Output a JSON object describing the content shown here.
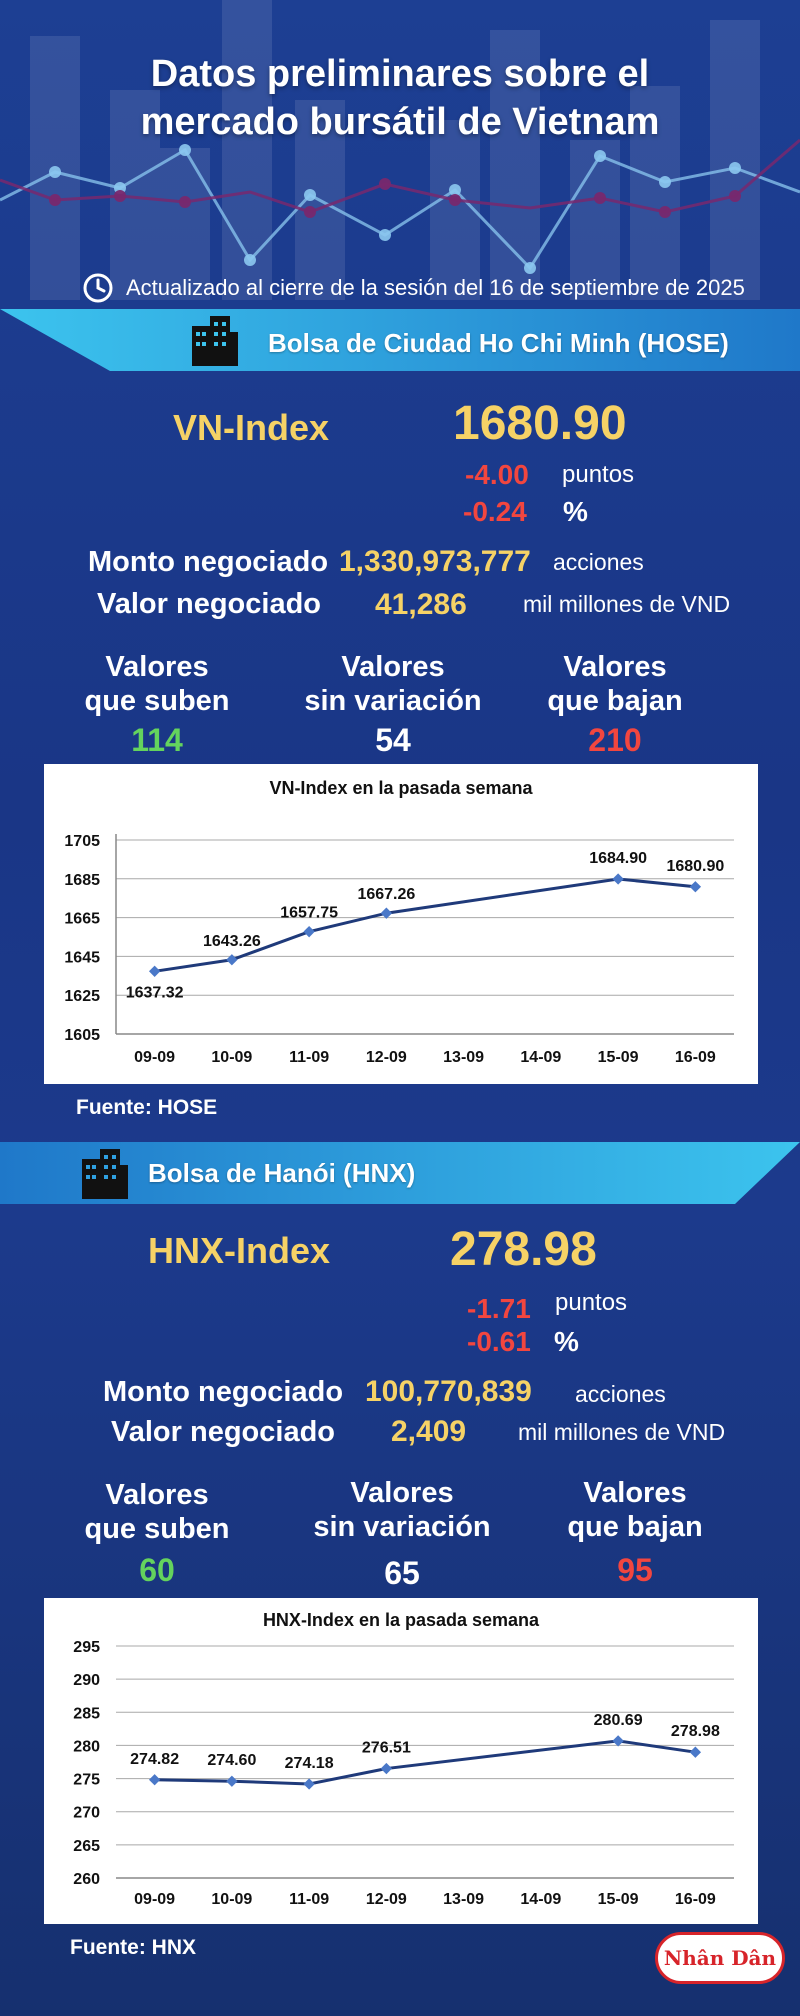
{
  "title_line1": "Datos preliminares sobre el",
  "title_line2": "mercado bursátil de Vietnam",
  "updated": "Actualizado al cierre de la sesión del 16 de septiembre de 2025",
  "hose": {
    "banner": "Bolsa de Ciudad Ho Chi Minh (HOSE)",
    "index_name": "VN-Index",
    "index_value": "1680.90",
    "change_points": "-4.00",
    "points_label": "puntos",
    "change_pct": "-0.24",
    "pct_label": "%",
    "volume_label": "Monto negociado",
    "volume_value": "1,330,973,777",
    "volume_unit": "acciones",
    "value_label": "Valor negociado",
    "value_value": "41,286",
    "value_unit": "mil millones de VND",
    "up_label1": "Valores",
    "up_label2": "que suben",
    "up_value": "114",
    "flat_label1": "Valores",
    "flat_label2": "sin variación",
    "flat_value": "54",
    "down_label1": "Valores",
    "down_label2": "que bajan",
    "down_value": "210",
    "source": "Fuente: HOSE"
  },
  "hnx": {
    "banner": "Bolsa de Hanói (HNX)",
    "index_name": "HNX-Index",
    "index_value": "278.98",
    "change_points": "-1.71",
    "points_label": "puntos",
    "change_pct": "-0.61",
    "pct_label": "%",
    "volume_label": "Monto negociado",
    "volume_value": "100,770,839",
    "volume_unit": "acciones",
    "value_label": "Valor negociado",
    "value_value": "2,409",
    "value_unit": "mil millones de VND",
    "up_label1": "Valores",
    "up_label2": "que suben",
    "up_value": "60",
    "flat_label1": "Valores",
    "flat_label2": "sin variación",
    "flat_value": "65",
    "down_label1": "Valores",
    "down_label2": "que bajan",
    "down_value": "95",
    "source": "Fuente:  HNX"
  },
  "logo_text": "Nhân Dân",
  "colors": {
    "accent_yellow": "#f6d266",
    "up_green": "#64d35d",
    "down_red": "#f2463f",
    "line": "#1f3a7a"
  },
  "chart_data": [
    {
      "type": "line",
      "title": "VN-Index en la pasada semana",
      "categories": [
        "09-09",
        "10-09",
        "11-09",
        "12-09",
        "13-09",
        "14-09",
        "15-09",
        "16-09"
      ],
      "x_indices": [
        0,
        1,
        2,
        3,
        6,
        7
      ],
      "values": [
        1637.32,
        1643.26,
        1657.75,
        1667.26,
        1684.9,
        1680.9
      ],
      "labels": [
        "1637.32",
        "1643.26",
        "1657.75",
        "1667.26",
        "1684.90",
        "1680.90"
      ],
      "yticks": [
        1605,
        1625,
        1645,
        1665,
        1685,
        1705
      ],
      "ylim": [
        1605,
        1705
      ],
      "grid": true,
      "legend": "none"
    },
    {
      "type": "line",
      "title": "HNX-Index en la pasada semana",
      "categories": [
        "09-09",
        "10-09",
        "11-09",
        "12-09",
        "13-09",
        "14-09",
        "15-09",
        "16-09"
      ],
      "x_indices": [
        0,
        1,
        2,
        3,
        6,
        7
      ],
      "values": [
        274.82,
        274.6,
        274.18,
        276.51,
        280.69,
        278.98
      ],
      "labels": [
        "274.82",
        "274.60",
        "274.18",
        "276.51",
        "280.69",
        "278.98"
      ],
      "yticks": [
        260,
        265,
        270,
        275,
        280,
        285,
        290,
        295
      ],
      "ylim": [
        260,
        295
      ],
      "grid": true,
      "legend": "none"
    }
  ]
}
